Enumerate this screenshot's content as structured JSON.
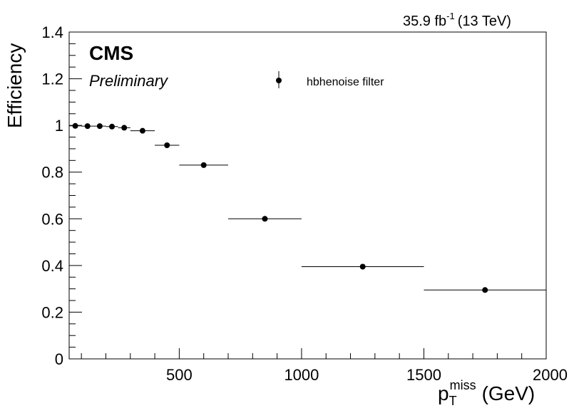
{
  "chart_data": {
    "type": "scatter",
    "lumi_text": "35.9 fb",
    "lumi_exponent": "-1",
    "energy_text": "(13 TeV)",
    "experiment": "CMS",
    "status": "Preliminary",
    "xlabel_main": "p",
    "xlabel_sub": "T",
    "xlabel_sup": "miss",
    "xlabel_unit": "(GeV)",
    "ylabel": "Efficiency",
    "xlim": [
      50,
      2000
    ],
    "ylim": [
      0,
      1.4
    ],
    "x_ticks": [
      500,
      1000,
      1500,
      2000
    ],
    "x_tick_labels": [
      "500",
      "1000",
      "1500",
      "2000"
    ],
    "y_ticks": [
      0,
      0.2,
      0.4,
      0.6,
      0.8,
      1,
      1.2,
      1.4
    ],
    "y_tick_labels": [
      "0",
      "0.2",
      "0.4",
      "0.6",
      "0.8",
      "1",
      "1.2",
      "1.4"
    ],
    "legend_position": "top-center",
    "series": [
      {
        "name": "hbhenoise filter",
        "color": "#000000",
        "points": [
          {
            "x": 75,
            "xlow": 50,
            "xhigh": 100,
            "y": 0.998
          },
          {
            "x": 125,
            "xlow": 100,
            "xhigh": 150,
            "y": 0.997
          },
          {
            "x": 175,
            "xlow": 150,
            "xhigh": 200,
            "y": 0.997
          },
          {
            "x": 225,
            "xlow": 200,
            "xhigh": 250,
            "y": 0.995
          },
          {
            "x": 275,
            "xlow": 250,
            "xhigh": 300,
            "y": 0.99
          },
          {
            "x": 350,
            "xlow": 300,
            "xhigh": 400,
            "y": 0.977
          },
          {
            "x": 450,
            "xlow": 400,
            "xhigh": 500,
            "y": 0.915
          },
          {
            "x": 600,
            "xlow": 500,
            "xhigh": 700,
            "y": 0.83
          },
          {
            "x": 850,
            "xlow": 700,
            "xhigh": 1000,
            "y": 0.6
          },
          {
            "x": 1250,
            "xlow": 1000,
            "xhigh": 1500,
            "y": 0.395
          },
          {
            "x": 1750,
            "xlow": 1500,
            "xhigh": 2000,
            "y": 0.295
          }
        ]
      }
    ]
  }
}
